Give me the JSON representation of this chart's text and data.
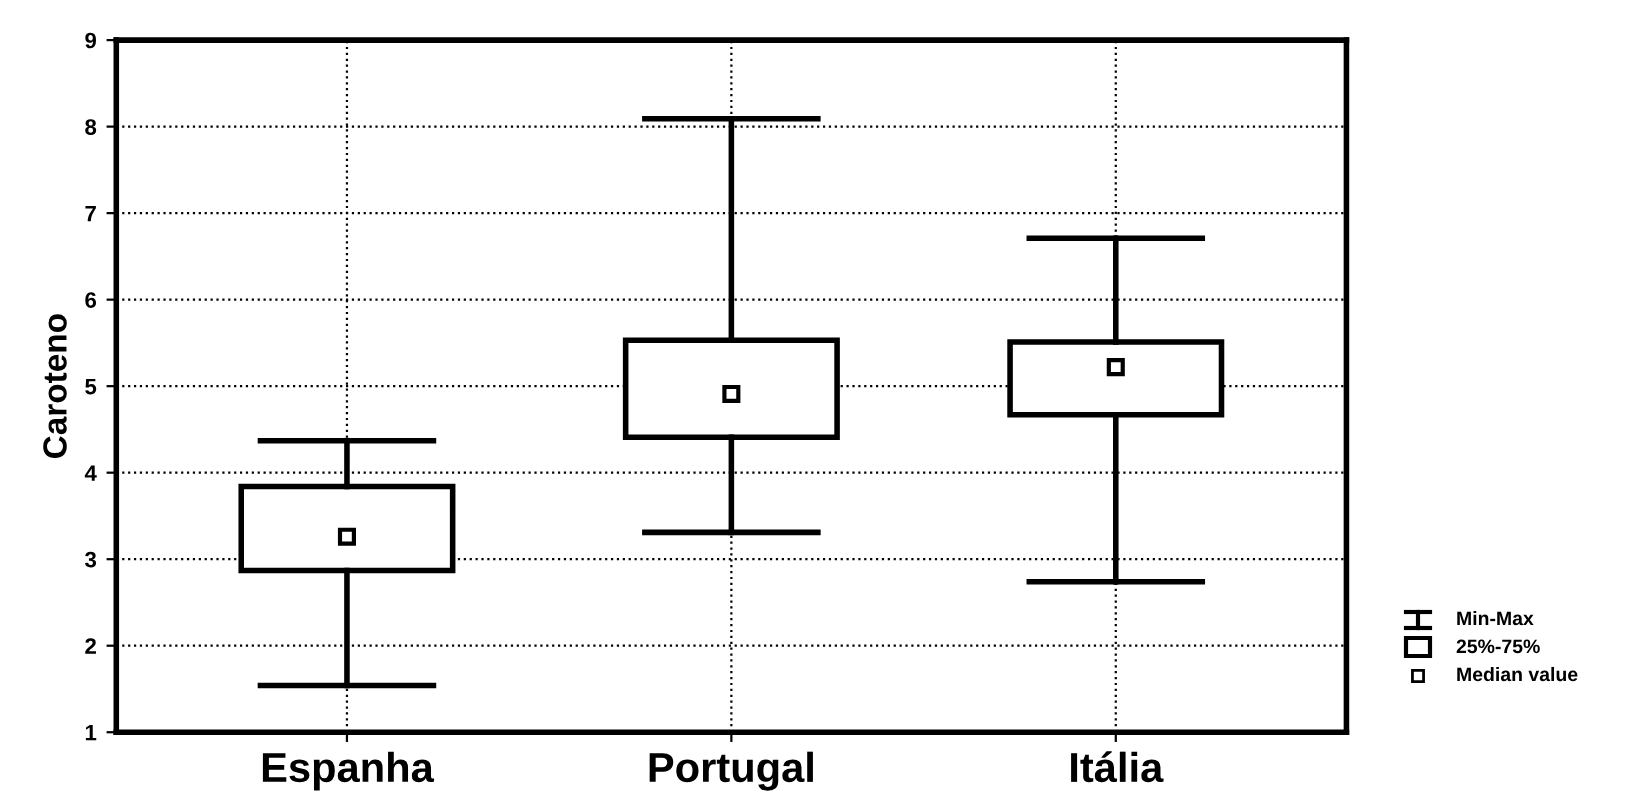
{
  "chart_data": {
    "type": "box",
    "ylabel": "Caroteno",
    "categories": [
      "Espanha",
      "Portugal",
      "Itália"
    ],
    "boxes": [
      {
        "low": 1.54,
        "q1": 2.87,
        "median": 3.26,
        "q3": 3.84,
        "high": 4.37
      },
      {
        "low": 3.31,
        "q1": 4.41,
        "median": 4.91,
        "q3": 5.53,
        "high": 8.09
      },
      {
        "low": 2.74,
        "q1": 4.67,
        "median": 5.22,
        "q3": 5.51,
        "high": 6.71
      }
    ],
    "ylim": [
      1,
      9
    ],
    "yticks": [
      1,
      2,
      3,
      4,
      5,
      6,
      7,
      8,
      9
    ],
    "grid": true,
    "marker": "square",
    "annotations": [
      "Min-Max",
      "25%-75%",
      "Median value"
    ]
  }
}
